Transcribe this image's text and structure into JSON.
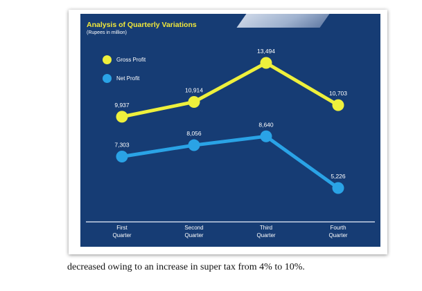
{
  "chart_data": {
    "type": "line",
    "title": "Analysis of Quarterly Variations",
    "subtitle": "(Rupees in million)",
    "categories": [
      "First\nQuarter",
      "Second\nQuarter",
      "Third\nQuarter",
      "Fourth\nQuarter"
    ],
    "series": [
      {
        "name": "Gross Profit",
        "values": [
          9937,
          10914,
          13494,
          10703
        ],
        "labels": [
          "9,937",
          "10,914",
          "13,494",
          "10,703"
        ],
        "color": "#eef03c"
      },
      {
        "name": "Net Profit",
        "values": [
          7303,
          8056,
          8640,
          5226
        ],
        "labels": [
          "7,303",
          "8,056",
          "8,640",
          "5,226"
        ],
        "color": "#2aa3e6"
      }
    ],
    "xlabel": "",
    "ylabel": "",
    "grid": false,
    "legend_position": "top-left"
  },
  "colors": {
    "panel_bg": "#163c74",
    "title": "#f2e83a",
    "text": "#ffffff",
    "axis": "#c8d4e6"
  },
  "caption": "decreased owing to an increase in super tax from 4% to 10%."
}
